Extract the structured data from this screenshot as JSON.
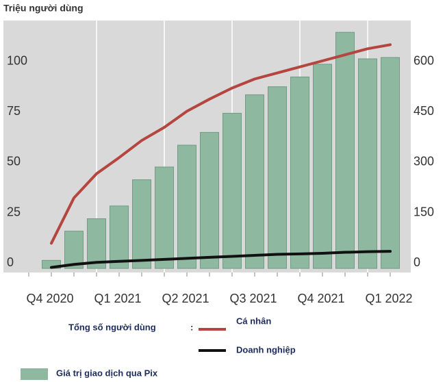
{
  "chart_data": {
    "type": "bar-line",
    "y_label": "Triệu người dùng",
    "categories": [
      "Q4 2020",
      null,
      null,
      "Q1 2021",
      null,
      null,
      "Q2 2021",
      null,
      null,
      "Q3 2021",
      null,
      null,
      "Q4 2021",
      null,
      null,
      "Q1 2022"
    ],
    "series": [
      {
        "name": "Giá trị giao dịch qua Pix",
        "type": "bar",
        "axis": "y2",
        "color": "#8fb8a0",
        "values": [
          24,
          111,
          148,
          186,
          264,
          302,
          367,
          405,
          462,
          517,
          541,
          570,
          608,
          703,
          624,
          628
        ]
      },
      {
        "name": "Cá nhân",
        "type": "line",
        "color": "#b5453f",
        "values": [
          12.5,
          35,
          47,
          55,
          63.5,
          70,
          78,
          84,
          89.5,
          94,
          97,
          100,
          103,
          106,
          109,
          111
        ]
      },
      {
        "name": "Doanh nghiệp",
        "type": "line",
        "color": "#111111",
        "values": [
          0.5,
          2,
          3,
          3.5,
          4,
          4.5,
          5,
          5.5,
          6,
          6.5,
          7,
          7.2,
          7.5,
          8,
          8.3,
          8.5
        ]
      }
    ],
    "legend_title": "Tổng số người dùng",
    "legend_separator": ":",
    "ylim": [
      -2,
      123
    ],
    "yticks": [
      0,
      25,
      50,
      75,
      100
    ],
    "y2lim": [
      -12,
      738
    ],
    "y2ticks": [
      0,
      150,
      300,
      450,
      600
    ],
    "grid": true
  }
}
